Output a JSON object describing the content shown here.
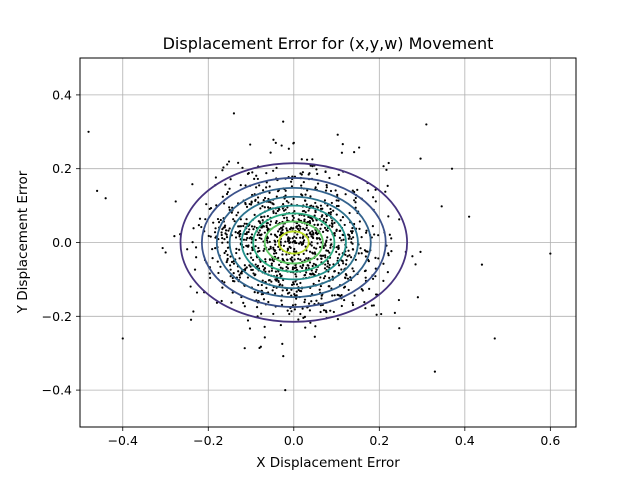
{
  "chart_data": {
    "type": "scatter",
    "title": "Displacement Error for (x,y,w) Movement",
    "xlabel": "X Displacement Error",
    "ylabel": "Y Displacement Error",
    "xlim": [
      -0.5,
      0.66
    ],
    "ylim": [
      -0.5,
      0.5
    ],
    "x_ticks": [
      -0.4,
      -0.2,
      0.0,
      0.2,
      0.4,
      0.6
    ],
    "x_tick_labels": [
      "−0.4",
      "−0.2",
      "0.0",
      "0.2",
      "0.4",
      "0.6"
    ],
    "y_ticks": [
      -0.4,
      -0.2,
      0.0,
      0.2,
      0.4
    ],
    "y_tick_labels": [
      "−0.4",
      "−0.2",
      "0.0",
      "0.2",
      "0.4"
    ],
    "grid": true,
    "point_color": "#000000",
    "scatter_distribution": {
      "count": 1200,
      "mean_x": 0.0,
      "mean_y": 0.0,
      "std_x": 0.1,
      "std_y": 0.1
    },
    "outliers": [
      {
        "x": -0.48,
        "y": 0.3
      },
      {
        "x": -0.46,
        "y": 0.14
      },
      {
        "x": -0.44,
        "y": 0.12
      },
      {
        "x": -0.4,
        "y": -0.26
      },
      {
        "x": 0.6,
        "y": -0.03
      },
      {
        "x": 0.47,
        "y": -0.26
      },
      {
        "x": 0.41,
        "y": 0.07
      },
      {
        "x": 0.44,
        "y": -0.06
      },
      {
        "x": 0.37,
        "y": 0.2
      },
      {
        "x": 0.33,
        "y": -0.35
      },
      {
        "x": 0.31,
        "y": 0.32
      },
      {
        "x": -0.02,
        "y": -0.4
      },
      {
        "x": -0.14,
        "y": 0.35
      }
    ],
    "contours": [
      {
        "rx": 0.265,
        "ry": 0.215,
        "color": "#46327e"
      },
      {
        "rx": 0.215,
        "ry": 0.175,
        "color": "#3b528b"
      },
      {
        "rx": 0.18,
        "ry": 0.148,
        "color": "#33638d"
      },
      {
        "rx": 0.15,
        "ry": 0.124,
        "color": "#2c728e"
      },
      {
        "rx": 0.122,
        "ry": 0.1,
        "color": "#21918c"
      },
      {
        "rx": 0.095,
        "ry": 0.079,
        "color": "#28ae80"
      },
      {
        "rx": 0.068,
        "ry": 0.057,
        "color": "#5ec962"
      },
      {
        "rx": 0.035,
        "ry": 0.03,
        "color": "#bddf26"
      }
    ]
  }
}
